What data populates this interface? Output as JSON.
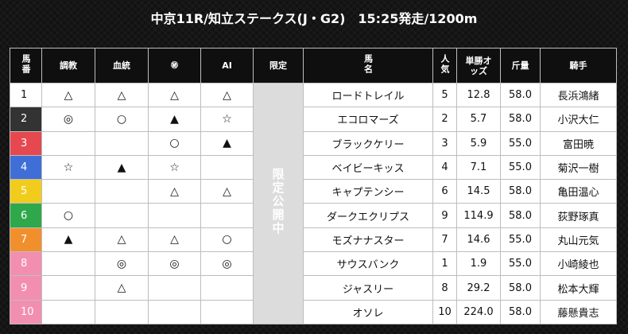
{
  "race": {
    "title": "中京11R/知立ステークス(J・G2)　15:25発走/1200m"
  },
  "headers": {
    "umaban": "馬番",
    "chokyo": "調教",
    "kettou": "血統",
    "maru_hi": "㊙",
    "ai": "AI",
    "gentei": "限定",
    "bamei": "馬名",
    "ninki": "人気",
    "odds": "単勝オッズ",
    "kinryo": "斤量",
    "kishu": "騎手"
  },
  "gentei_text": "限定公開中",
  "rows": [
    {
      "num": "1",
      "color": "#ffffff",
      "text_color": "#111111",
      "chokyo": "△",
      "kettou": "△",
      "maru": "△",
      "ai": "△",
      "name": "ロードトレイル",
      "ninki": "5",
      "odds": "12.8",
      "kinryo": "58.0",
      "jockey": "長浜鴻緒"
    },
    {
      "num": "2",
      "color": "#333333",
      "text_color": "#ffffff",
      "chokyo": "◎",
      "kettou": "○",
      "maru": "▲",
      "ai": "☆",
      "name": "エコロマーズ",
      "ninki": "2",
      "odds": "5.7",
      "kinryo": "58.0",
      "jockey": "小沢大仁"
    },
    {
      "num": "3",
      "color": "#e5484f",
      "text_color": "#ffffff",
      "chokyo": "",
      "kettou": "",
      "maru": "○",
      "ai": "▲",
      "name": "ブラックケリー",
      "ninki": "3",
      "odds": "5.9",
      "kinryo": "55.0",
      "jockey": "富田暁"
    },
    {
      "num": "4",
      "color": "#3f6fd6",
      "text_color": "#ffffff",
      "chokyo": "☆",
      "kettou": "▲",
      "maru": "☆",
      "ai": "",
      "name": "ベイビーキッス",
      "ninki": "4",
      "odds": "7.1",
      "kinryo": "55.0",
      "jockey": "菊沢一樹"
    },
    {
      "num": "5",
      "color": "#f2cc1c",
      "text_color": "#ffffff",
      "chokyo": "",
      "kettou": "",
      "maru": "△",
      "ai": "△",
      "name": "キャプテンシー",
      "ninki": "6",
      "odds": "14.5",
      "kinryo": "58.0",
      "jockey": "亀田温心"
    },
    {
      "num": "6",
      "color": "#2ea84a",
      "text_color": "#ffffff",
      "chokyo": "○",
      "kettou": "",
      "maru": "",
      "ai": "",
      "name": "ダークエクリプス",
      "ninki": "9",
      "odds": "114.9",
      "kinryo": "58.0",
      "jockey": "荻野琢真"
    },
    {
      "num": "7",
      "color": "#f18f2d",
      "text_color": "#ffffff",
      "chokyo": "▲",
      "kettou": "△",
      "maru": "△",
      "ai": "○",
      "name": "モズナナスター",
      "ninki": "7",
      "odds": "14.6",
      "kinryo": "55.0",
      "jockey": "丸山元気"
    },
    {
      "num": "8",
      "color": "#f28fb0",
      "text_color": "#ffffff",
      "chokyo": "",
      "kettou": "◎",
      "maru": "◎",
      "ai": "◎",
      "name": "サウスバンク",
      "ninki": "1",
      "odds": "1.9",
      "kinryo": "55.0",
      "jockey": "小崎綾也"
    },
    {
      "num": "9",
      "color": "#f28fb0",
      "text_color": "#ffffff",
      "chokyo": "",
      "kettou": "△",
      "maru": "",
      "ai": "",
      "name": "ジャスリー",
      "ninki": "8",
      "odds": "29.2",
      "kinryo": "58.0",
      "jockey": "松本大輝"
    },
    {
      "num": "10",
      "color": "#f28fb0",
      "text_color": "#ffffff",
      "chokyo": "",
      "kettou": "",
      "maru": "",
      "ai": "",
      "name": "オソレ",
      "ninki": "10",
      "odds": "224.0",
      "kinryo": "58.0",
      "jockey": "藤懸貴志"
    }
  ]
}
